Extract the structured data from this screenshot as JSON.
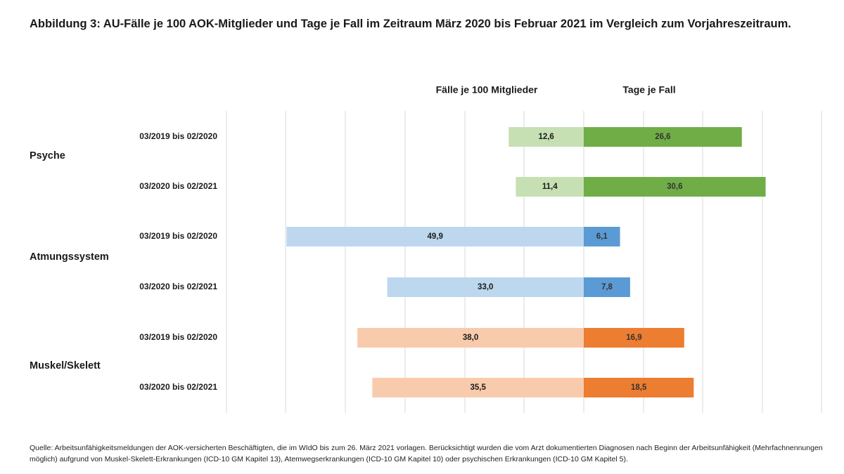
{
  "title": "Abbildung 3: AU-Fälle je 100 AOK-Mitglieder und Tage je Fall im Zeitraum März 2020 bis Februar 2021 im Vergleich zum Vorjahreszeitraum.",
  "source": "Quelle: Arbeitsunfähigkeitsmeldungen der AOK-versicherten Beschäftigten, die im WIdO bis zum 26. März 2021 vorlagen. Berücksichtigt wurden die vom Arzt dokumentierten Diagnosen nach Beginn der Arbeitsunfähigkeit (Mehrfachnennungen möglich) aufgrund von Muskel-Skelett-Erkrankungen (ICD-10 GM Kapitel 13), Atemwegserkrankungen (ICD-10 GM Kapitel 10) oder psychischen Erkrankungen (ICD-10 GM Kapitel 5).",
  "chart_data": {
    "type": "bar",
    "orientation": "horizontal-butterfly",
    "grid": true,
    "legend": "none",
    "left_header": "Fälle je 100 Mitglieder",
    "right_header": "Tage je Fall",
    "left_max": 50,
    "right_max": 40,
    "groups": [
      {
        "name": "Psyche",
        "light_color": "#c6e0b4",
        "dark_color": "#70ad47",
        "rows": [
          {
            "period": "03/2019 bis 02/2020",
            "faelle": 12.6,
            "faelle_label": "12,6",
            "tage": 26.6,
            "tage_label": "26,6"
          },
          {
            "period": "03/2020 bis 02/2021",
            "faelle": 11.4,
            "faelle_label": "11,4",
            "tage": 30.6,
            "tage_label": "30,6"
          }
        ]
      },
      {
        "name": "Atmungssystem",
        "light_color": "#bdd7ee",
        "dark_color": "#5b9bd5",
        "rows": [
          {
            "period": "03/2019 bis 02/2020",
            "faelle": 49.9,
            "faelle_label": "49,9",
            "tage": 6.1,
            "tage_label": "6,1"
          },
          {
            "period": "03/2020 bis 02/2021",
            "faelle": 33.0,
            "faelle_label": "33,0",
            "tage": 7.8,
            "tage_label": "7,8"
          }
        ]
      },
      {
        "name": "Muskel/Skelett",
        "light_color": "#f8cbad",
        "dark_color": "#ed7d31",
        "rows": [
          {
            "period": "03/2019 bis 02/2020",
            "faelle": 38.0,
            "faelle_label": "38,0",
            "tage": 16.9,
            "tage_label": "16,9"
          },
          {
            "period": "03/2020 bis 02/2021",
            "faelle": 35.5,
            "faelle_label": "35,5",
            "tage": 18.5,
            "tage_label": "18,5"
          }
        ]
      }
    ]
  }
}
